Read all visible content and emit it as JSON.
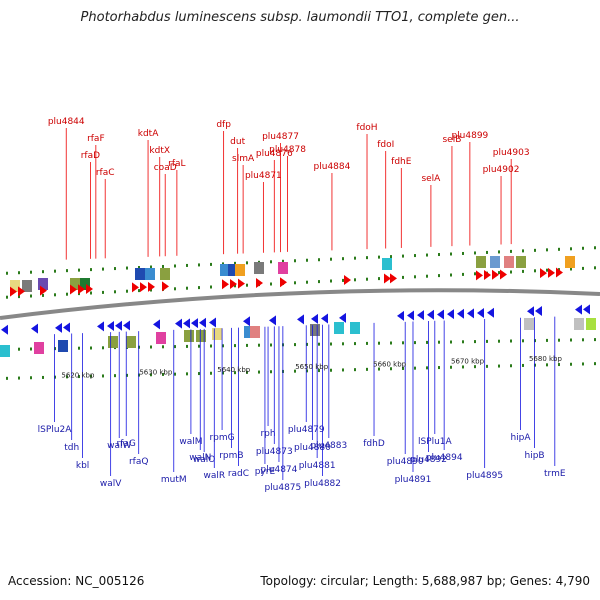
{
  "header": {
    "title": "Photorhabdus luminescens subsp. laumondii TTO1, complete gen..."
  },
  "footer": {
    "accession": "Accession: NC_005126",
    "summary": "Topology: circular; Length: 5,688,987 bp; Genes: 4,790"
  },
  "colors": {
    "forward": "#ee0000",
    "reverse": "#1515e0",
    "backbone": "#888888",
    "tick": "#2a7a1a"
  },
  "scale_labels": [
    {
      "text": "5620 kbp",
      "pos": 5620
    },
    {
      "text": "5630 kbp",
      "pos": 5630
    },
    {
      "text": "5640 kbp",
      "pos": 5640
    },
    {
      "text": "5650 kbp",
      "pos": 5650
    },
    {
      "text": "5660 kbp",
      "pos": 5660
    },
    {
      "text": "5670 kbp",
      "pos": 5670
    },
    {
      "text": "5680 kbp",
      "pos": 5680
    }
  ],
  "top_genes": [
    {
      "name": "plu4844",
      "pos": 5618.5
    },
    {
      "name": "rfaF",
      "pos": 5622.3
    },
    {
      "name": "rfaD",
      "pos": 5621.6
    },
    {
      "name": "rfaC",
      "pos": 5623.5
    },
    {
      "name": "kdtA",
      "pos": 5629.0
    },
    {
      "name": "kdtX",
      "pos": 5630.5
    },
    {
      "name": "coaD",
      "pos": 5631.2
    },
    {
      "name": "rfaL",
      "pos": 5632.7
    },
    {
      "name": "dfp",
      "pos": 5638.7
    },
    {
      "name": "dut",
      "pos": 5640.5
    },
    {
      "name": "slmA",
      "pos": 5641.2
    },
    {
      "name": "plu4871",
      "pos": 5643.8
    },
    {
      "name": "plu4877",
      "pos": 5646.0
    },
    {
      "name": "plu4876",
      "pos": 5645.2
    },
    {
      "name": "plu4878",
      "pos": 5646.9
    },
    {
      "name": "plu4884",
      "pos": 5652.6
    },
    {
      "name": "fdoH",
      "pos": 5657.1
    },
    {
      "name": "fdoI",
      "pos": 5659.5
    },
    {
      "name": "fdhE",
      "pos": 5661.5
    },
    {
      "name": "selA",
      "pos": 5665.3
    },
    {
      "name": "selB",
      "pos": 5668.0
    },
    {
      "name": "plu4899",
      "pos": 5670.3
    },
    {
      "name": "plu4903",
      "pos": 5675.6
    },
    {
      "name": "plu4902",
      "pos": 5674.3
    }
  ],
  "bottom_genes": [
    {
      "name": "lSPlu2A",
      "pos": 5617.0
    },
    {
      "name": "tdh",
      "pos": 5619.2
    },
    {
      "name": "kbl",
      "pos": 5620.6
    },
    {
      "name": "walV",
      "pos": 5624.2
    },
    {
      "name": "walW",
      "pos": 5625.3
    },
    {
      "name": "rfaG",
      "pos": 5626.2
    },
    {
      "name": "rfaQ",
      "pos": 5627.8
    },
    {
      "name": "mutM",
      "pos": 5632.3
    },
    {
      "name": "walM",
      "pos": 5634.5
    },
    {
      "name": "walO",
      "pos": 5636.2
    },
    {
      "name": "walN",
      "pos": 5635.7
    },
    {
      "name": "walR",
      "pos": 5637.5
    },
    {
      "name": "rpmG",
      "pos": 5638.5
    },
    {
      "name": "rpmB",
      "pos": 5639.7
    },
    {
      "name": "radC",
      "pos": 5640.6
    },
    {
      "name": "pyrE",
      "pos": 5644.0
    },
    {
      "name": "rph",
      "pos": 5644.4
    },
    {
      "name": "plu4873",
      "pos": 5645.2
    },
    {
      "name": "plu4874",
      "pos": 5645.8
    },
    {
      "name": "plu4875",
      "pos": 5646.3
    },
    {
      "name": "plu4879",
      "pos": 5649.3
    },
    {
      "name": "plu4880",
      "pos": 5650.1
    },
    {
      "name": "plu4881",
      "pos": 5650.7
    },
    {
      "name": "plu4882",
      "pos": 5651.4
    },
    {
      "name": "plu4883",
      "pos": 5652.2
    },
    {
      "name": "fdhD",
      "pos": 5658.0
    },
    {
      "name": "plu4890",
      "pos": 5662.0
    },
    {
      "name": "plu4891",
      "pos": 5663.0
    },
    {
      "name": "lSPlu1A",
      "pos": 5665.8
    },
    {
      "name": "plu4892",
      "pos": 5665.0
    },
    {
      "name": "plu4894",
      "pos": 5667.0
    },
    {
      "name": "plu4895",
      "pos": 5672.2
    },
    {
      "name": "hipA",
      "pos": 5676.8
    },
    {
      "name": "hipB",
      "pos": 5678.6
    },
    {
      "name": "trmE",
      "pos": 5681.2
    }
  ]
}
